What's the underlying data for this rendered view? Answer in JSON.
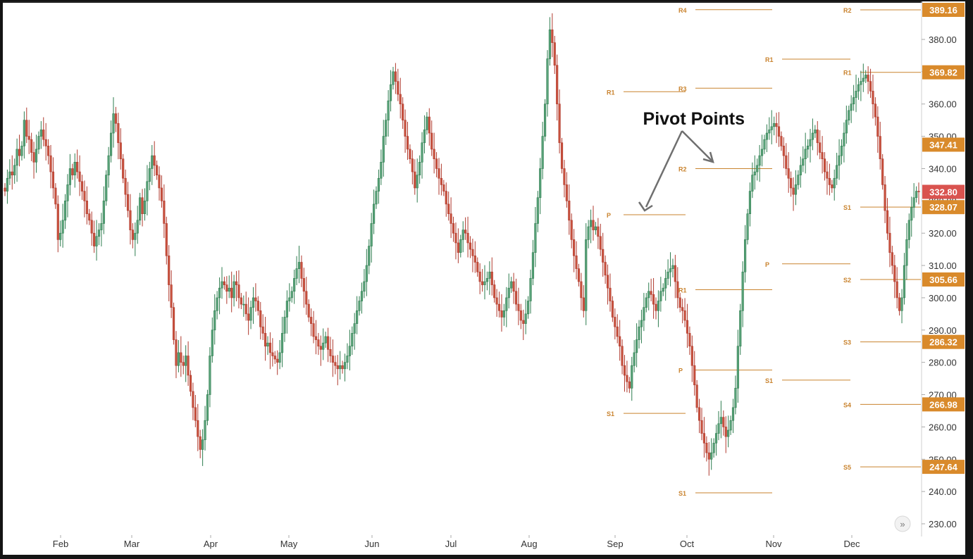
{
  "chart_data": {
    "type": "candlestick",
    "title": "",
    "annotation": "Pivot Points",
    "x_ticks": [
      "Feb",
      "Mar",
      "Apr",
      "May",
      "Jun",
      "Jul",
      "Aug",
      "Sep",
      "Oct",
      "Nov",
      "Dec"
    ],
    "y_ticks": [
      "230.00",
      "240.00",
      "250.00",
      "260.00",
      "270.00",
      "280.00",
      "290.00",
      "300.00",
      "310.00",
      "320.00",
      "330.00",
      "340.00",
      "350.00",
      "360.00",
      "370.00",
      "380.00"
    ],
    "ylim": [
      225,
      390.5
    ],
    "current_price": "332.80",
    "price_tags": [
      {
        "value": 389.16,
        "label": "389.16"
      },
      {
        "value": 369.82,
        "label": "369.82"
      },
      {
        "value": 347.41,
        "label": "347.41"
      },
      {
        "value": 328.07,
        "label": "328.07"
      },
      {
        "value": 305.66,
        "label": "305.66"
      },
      {
        "value": 286.32,
        "label": "286.32"
      },
      {
        "value": 266.98,
        "label": "266.98"
      },
      {
        "value": 247.64,
        "label": "247.64"
      }
    ],
    "pivot_levels": [
      {
        "label": "R1",
        "value": 363.8,
        "start": "Sep",
        "end": "Oct"
      },
      {
        "label": "P",
        "value": 325.7,
        "start": "Sep",
        "end": "Oct"
      },
      {
        "label": "S1",
        "value": 264.2,
        "start": "Sep",
        "end": "Oct"
      },
      {
        "label": "R4",
        "value": 389.2,
        "start": "Oct",
        "end": "Nov"
      },
      {
        "label": "R3",
        "value": 364.9,
        "start": "Oct",
        "end": "Nov"
      },
      {
        "label": "R2",
        "value": 340.0,
        "start": "Oct",
        "end": "Nov"
      },
      {
        "label": "R1",
        "value": 302.5,
        "start": "Oct",
        "end": "Nov"
      },
      {
        "label": "P",
        "value": 277.6,
        "start": "Oct",
        "end": "Nov"
      },
      {
        "label": "S1",
        "value": 239.6,
        "start": "Oct",
        "end": "Nov"
      },
      {
        "label": "R1",
        "value": 373.9,
        "start": "Nov",
        "end": "Dec"
      },
      {
        "label": "P",
        "value": 310.5,
        "start": "Nov",
        "end": "Dec"
      },
      {
        "label": "S1",
        "value": 274.5,
        "start": "Nov",
        "end": "Dec"
      },
      {
        "label": "R2",
        "value": 389.16,
        "start": "Dec",
        "end": "Jan"
      },
      {
        "label": "R1",
        "value": 369.82,
        "start": "Dec",
        "end": "Jan"
      },
      {
        "label": "S1",
        "value": 328.07,
        "start": "Dec",
        "end": "Jan"
      },
      {
        "label": "S2",
        "value": 305.66,
        "start": "Dec",
        "end": "Jan"
      },
      {
        "label": "S3",
        "value": 286.32,
        "start": "Dec",
        "end": "Jan"
      },
      {
        "label": "S4",
        "value": 266.98,
        "start": "Dec",
        "end": "Jan"
      },
      {
        "label": "S5",
        "value": 247.64,
        "start": "Dec",
        "end": "Jan"
      }
    ],
    "ohlc_closes": [
      333,
      337,
      339,
      338,
      341,
      346,
      344,
      347,
      355,
      350,
      349,
      345,
      342,
      346,
      350,
      352,
      349,
      347,
      344,
      339,
      334,
      329,
      318,
      320,
      324,
      330,
      335,
      340,
      338,
      342,
      339,
      336,
      333,
      330,
      326,
      324,
      320,
      316,
      319,
      321,
      323,
      330,
      338,
      344,
      351,
      357,
      354,
      348,
      343,
      337,
      332,
      327,
      321,
      318,
      320,
      324,
      331,
      326,
      330,
      336,
      340,
      344,
      341,
      338,
      334,
      330,
      323,
      313,
      304,
      297,
      287,
      279,
      283,
      280,
      279,
      282,
      276,
      271,
      266,
      262,
      257,
      253,
      256,
      262,
      270,
      282,
      290,
      296,
      300,
      303,
      305,
      304,
      302,
      303,
      300,
      305,
      304,
      300,
      298,
      298,
      295,
      293,
      297,
      300,
      299,
      296,
      291,
      289,
      285,
      286,
      283,
      282,
      281,
      280,
      283,
      289,
      294,
      299,
      300,
      302,
      306,
      309,
      311,
      306,
      302,
      298,
      294,
      292,
      288,
      287,
      285,
      284,
      286,
      288,
      284,
      282,
      280,
      279,
      278,
      279,
      278,
      280,
      282,
      285,
      289,
      292,
      296,
      299,
      302,
      305,
      310,
      316,
      323,
      329,
      333,
      337,
      342,
      350,
      355,
      361,
      366,
      370,
      367,
      363,
      360,
      355,
      350,
      346,
      343,
      339,
      334,
      338,
      342,
      348,
      352,
      356,
      351,
      346,
      343,
      340,
      337,
      335,
      333,
      329,
      326,
      323,
      320,
      317,
      314,
      318,
      321,
      320,
      317,
      315,
      313,
      311,
      308,
      305,
      304,
      305,
      306,
      308,
      304,
      300,
      298,
      296,
      294,
      296,
      300,
      303,
      305,
      302,
      298,
      296,
      293,
      292,
      295,
      299,
      306,
      314,
      323,
      331,
      340,
      350,
      360,
      374,
      383,
      379,
      372,
      360,
      348,
      340,
      335,
      330,
      324,
      318,
      313,
      309,
      305,
      300,
      296,
      318,
      322,
      324,
      321,
      322,
      319,
      315,
      311,
      307,
      303,
      299,
      294,
      291,
      288,
      285,
      279,
      276,
      274,
      272,
      279,
      283,
      287,
      291,
      293,
      297,
      300,
      302,
      301,
      298,
      296,
      299,
      302,
      303,
      306,
      308,
      309,
      310,
      305,
      300,
      297,
      296,
      293,
      289,
      285,
      279,
      273,
      266,
      262,
      258,
      255,
      252,
      250,
      252,
      255,
      258,
      261,
      263,
      260,
      257,
      259,
      262,
      266,
      272,
      285,
      296,
      308,
      318,
      326,
      333,
      338,
      339,
      341,
      344,
      346,
      349,
      351,
      352,
      353,
      354,
      353,
      350,
      347,
      344,
      340,
      337,
      334,
      332,
      335,
      338,
      341,
      343,
      346,
      347,
      349,
      351,
      352,
      348,
      345,
      343,
      339,
      337,
      335,
      334,
      337,
      341,
      344,
      347,
      351,
      355,
      358,
      360,
      362,
      364,
      366,
      367,
      368,
      369,
      367,
      364,
      360,
      356,
      350,
      343,
      335,
      327,
      320,
      314,
      310,
      305,
      300,
      296,
      300,
      310,
      318,
      324,
      328,
      331,
      333,
      332.8
    ]
  }
}
